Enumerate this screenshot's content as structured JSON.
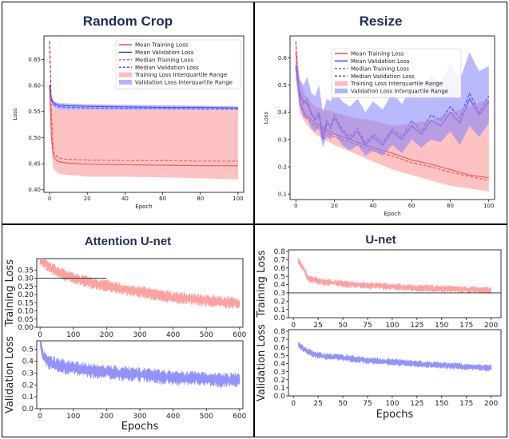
{
  "figure": {
    "titles": [
      "Random Crop",
      "Resize",
      "Attention U-net",
      "U-net"
    ]
  },
  "colors": {
    "title": "#1f2d5a",
    "train": "#e02020",
    "val": "#1a1aff",
    "train_band": "#ff9090",
    "val_band": "#8080ff"
  },
  "chart_data": [
    {
      "type": "line",
      "title": "Random Crop",
      "xlabel": "Epoch",
      "ylabel": "Loss",
      "xlim": [
        -3,
        103
      ],
      "ylim": [
        0.395,
        0.695
      ],
      "xticks": [
        0,
        20,
        40,
        60,
        80,
        100
      ],
      "yticks": [
        0.4,
        0.45,
        0.5,
        0.55,
        0.6,
        0.65
      ],
      "legend_position": "top-right",
      "series": [
        {
          "name": "Mean Training Loss",
          "style": "solid",
          "color": "train",
          "x": [
            0,
            1,
            2,
            4,
            6,
            10,
            20,
            40,
            60,
            80,
            100
          ],
          "y": [
            0.6,
            0.5,
            0.465,
            0.455,
            0.453,
            0.451,
            0.449,
            0.448,
            0.447,
            0.446,
            0.446
          ]
        },
        {
          "name": "Mean Validation Loss",
          "style": "solid",
          "color": "val",
          "x": [
            0,
            1,
            2,
            4,
            6,
            10,
            20,
            40,
            60,
            80,
            100
          ],
          "y": [
            0.6,
            0.575,
            0.567,
            0.563,
            0.562,
            0.561,
            0.56,
            0.559,
            0.558,
            0.558,
            0.557
          ]
        },
        {
          "name": "Median Training Loss",
          "style": "dashed",
          "color": "train",
          "x": [
            0,
            1,
            2,
            4,
            6,
            10,
            20,
            40,
            60,
            80,
            100
          ],
          "y": [
            0.685,
            0.55,
            0.472,
            0.463,
            0.46,
            0.458,
            0.457,
            0.456,
            0.456,
            0.455,
            0.455
          ]
        },
        {
          "name": "Median Validation Loss",
          "style": "dashed",
          "color": "val",
          "x": [
            0,
            1,
            2,
            4,
            6,
            10,
            20,
            40,
            60,
            80,
            100
          ],
          "y": [
            0.6,
            0.572,
            0.564,
            0.56,
            0.559,
            0.558,
            0.557,
            0.556,
            0.556,
            0.555,
            0.555
          ]
        },
        {
          "name": "Training Loss Interquartile Range",
          "style": "band",
          "color": "train_band",
          "x": [
            0,
            1,
            2,
            5,
            20,
            40,
            60,
            80,
            100
          ],
          "lower": [
            0.59,
            0.48,
            0.44,
            0.43,
            0.425,
            0.425,
            0.424,
            0.422,
            0.42
          ],
          "upper": [
            0.6,
            0.565,
            0.557,
            0.553,
            0.553,
            0.553,
            0.553,
            0.553,
            0.553
          ]
        },
        {
          "name": "Validation Loss Interquartile Range",
          "style": "band",
          "color": "val_band",
          "x": [
            0,
            1,
            2,
            5,
            20,
            40,
            60,
            80,
            100
          ],
          "lower": [
            0.6,
            0.566,
            0.558,
            0.553,
            0.553,
            0.553,
            0.553,
            0.553,
            0.553
          ],
          "upper": [
            0.61,
            0.58,
            0.57,
            0.566,
            0.564,
            0.563,
            0.562,
            0.561,
            0.56
          ]
        }
      ]
    },
    {
      "type": "line",
      "title": "Resize",
      "xlabel": "Epoch",
      "ylabel": "Loss",
      "xlim": [
        -3,
        103
      ],
      "ylim": [
        0.08,
        0.68
      ],
      "xticks": [
        0,
        20,
        40,
        60,
        80,
        100
      ],
      "yticks": [
        0.1,
        0.2,
        0.3,
        0.4,
        0.5,
        0.6
      ],
      "legend_position": "top-right",
      "series": [
        {
          "name": "Mean Training Loss",
          "style": "solid",
          "color": "train",
          "x": [
            0,
            2,
            5,
            10,
            15,
            20,
            30,
            40,
            50,
            60,
            70,
            80,
            90,
            100
          ],
          "y": [
            0.62,
            0.44,
            0.39,
            0.36,
            0.34,
            0.32,
            0.295,
            0.27,
            0.25,
            0.225,
            0.21,
            0.19,
            0.17,
            0.16
          ]
        },
        {
          "name": "Mean Validation Loss",
          "style": "solid",
          "color": "val",
          "x": [
            0,
            2,
            4,
            6,
            8,
            10,
            12,
            14,
            16,
            18,
            20,
            24,
            28,
            32,
            36,
            40,
            45,
            50,
            55,
            60,
            65,
            70,
            75,
            80,
            85,
            90,
            95,
            100
          ],
          "y": [
            0.57,
            0.47,
            0.44,
            0.43,
            0.4,
            0.37,
            0.39,
            0.3,
            0.36,
            0.35,
            0.38,
            0.33,
            0.3,
            0.33,
            0.28,
            0.31,
            0.28,
            0.33,
            0.3,
            0.35,
            0.32,
            0.37,
            0.35,
            0.4,
            0.36,
            0.45,
            0.39,
            0.44
          ]
        },
        {
          "name": "Median Training Loss",
          "style": "dashed",
          "color": "train",
          "x": [
            0,
            2,
            5,
            10,
            15,
            20,
            30,
            40,
            50,
            60,
            70,
            80,
            90,
            100
          ],
          "y": [
            0.66,
            0.43,
            0.38,
            0.35,
            0.33,
            0.31,
            0.285,
            0.26,
            0.24,
            0.215,
            0.2,
            0.18,
            0.165,
            0.15
          ]
        },
        {
          "name": "Median Validation Loss",
          "style": "dashed",
          "color": "val",
          "x": [
            0,
            2,
            4,
            6,
            8,
            10,
            12,
            14,
            16,
            18,
            20,
            24,
            28,
            32,
            36,
            40,
            45,
            50,
            55,
            60,
            65,
            70,
            75,
            80,
            85,
            90,
            95,
            100
          ],
          "y": [
            0.56,
            0.46,
            0.43,
            0.45,
            0.39,
            0.38,
            0.4,
            0.32,
            0.37,
            0.34,
            0.39,
            0.34,
            0.31,
            0.34,
            0.29,
            0.32,
            0.29,
            0.34,
            0.31,
            0.37,
            0.33,
            0.39,
            0.37,
            0.42,
            0.38,
            0.47,
            0.4,
            0.46
          ]
        },
        {
          "name": "Training Loss Interquartile Range",
          "style": "band",
          "color": "train_band",
          "x": [
            0,
            2,
            5,
            10,
            20,
            30,
            40,
            50,
            60,
            70,
            80,
            90,
            100
          ],
          "lower": [
            0.55,
            0.4,
            0.36,
            0.32,
            0.28,
            0.25,
            0.22,
            0.19,
            0.17,
            0.15,
            0.13,
            0.12,
            0.11
          ],
          "upper": [
            0.66,
            0.52,
            0.46,
            0.42,
            0.4,
            0.38,
            0.37,
            0.35,
            0.36,
            0.37,
            0.4,
            0.42,
            0.45
          ]
        },
        {
          "name": "Validation Loss Interquartile Range",
          "style": "band",
          "color": "val_band",
          "x": [
            0,
            2,
            4,
            6,
            8,
            10,
            12,
            14,
            16,
            18,
            20,
            24,
            28,
            32,
            36,
            40,
            45,
            50,
            55,
            60,
            65,
            70,
            75,
            80,
            85,
            90,
            95,
            100
          ],
          "lower": [
            0.52,
            0.42,
            0.38,
            0.38,
            0.34,
            0.33,
            0.34,
            0.27,
            0.31,
            0.3,
            0.32,
            0.28,
            0.26,
            0.28,
            0.24,
            0.26,
            0.24,
            0.28,
            0.25,
            0.3,
            0.27,
            0.3,
            0.29,
            0.33,
            0.28,
            0.35,
            0.31,
            0.36
          ],
          "upper": [
            0.6,
            0.52,
            0.5,
            0.53,
            0.47,
            0.46,
            0.5,
            0.4,
            0.45,
            0.44,
            0.48,
            0.44,
            0.42,
            0.45,
            0.4,
            0.44,
            0.41,
            0.47,
            0.43,
            0.5,
            0.46,
            0.54,
            0.51,
            0.58,
            0.52,
            0.62,
            0.55,
            0.57
          ]
        }
      ]
    },
    {
      "type": "line",
      "title": "Attention U-net",
      "ylabel": "Training Loss",
      "xlabel": "",
      "xlim": [
        -10,
        610
      ],
      "ylim": [
        0,
        0.42
      ],
      "xticks": [
        0,
        100,
        200,
        300,
        400,
        500,
        600
      ],
      "yticks": [
        0.0,
        0.05,
        0.1,
        0.15,
        0.2,
        0.25,
        0.3,
        0.35
      ],
      "reference_line": {
        "y": 0.3,
        "x_from": -10,
        "x_to": 200
      },
      "series": [
        {
          "name": "",
          "style": "noisy",
          "color": "train_band",
          "x": [
            0,
            20,
            50,
            100,
            150,
            200,
            250,
            300,
            350,
            400,
            450,
            500,
            550,
            600
          ],
          "y": [
            0.42,
            0.38,
            0.34,
            0.3,
            0.275,
            0.255,
            0.235,
            0.215,
            0.2,
            0.185,
            0.175,
            0.165,
            0.155,
            0.148
          ],
          "noise": 0.03
        }
      ]
    },
    {
      "type": "line",
      "title": "",
      "ylabel": "Validation Loss",
      "xlabel": "Epochs",
      "xlim": [
        -10,
        610
      ],
      "ylim": [
        0,
        0.57
      ],
      "xticks": [
        0,
        100,
        200,
        300,
        400,
        500,
        600
      ],
      "yticks": [
        0.0,
        0.1,
        0.2,
        0.3,
        0.4,
        0.5
      ],
      "series": [
        {
          "name": "",
          "style": "noisy",
          "color": "val_band",
          "x": [
            0,
            10,
            30,
            60,
            100,
            150,
            200,
            250,
            300,
            350,
            400,
            450,
            500,
            550,
            600
          ],
          "y": [
            0.55,
            0.44,
            0.39,
            0.36,
            0.34,
            0.32,
            0.31,
            0.295,
            0.285,
            0.27,
            0.26,
            0.255,
            0.25,
            0.24,
            0.24
          ],
          "noise": 0.05
        }
      ]
    },
    {
      "type": "line",
      "title": "U-net",
      "ylabel": "Training Loss",
      "xlabel": "",
      "xlim": [
        -5,
        210
      ],
      "ylim": [
        0,
        0.82
      ],
      "xticks": [
        0,
        25,
        50,
        75,
        100,
        125,
        150,
        175,
        200
      ],
      "yticks": [
        0.0,
        0.1,
        0.2,
        0.3,
        0.4,
        0.5,
        0.6,
        0.7,
        0.8
      ],
      "reference_line": {
        "y": 0.3,
        "x_from": -5,
        "x_to": 210
      },
      "series": [
        {
          "name": "",
          "style": "noisy",
          "color": "train_band",
          "x": [
            5,
            10,
            15,
            20,
            30,
            50,
            75,
            100,
            125,
            150,
            175,
            200
          ],
          "y": [
            0.68,
            0.6,
            0.47,
            0.46,
            0.43,
            0.41,
            0.39,
            0.375,
            0.36,
            0.35,
            0.34,
            0.33
          ],
          "noise": 0.035
        }
      ]
    },
    {
      "type": "line",
      "title": "",
      "ylabel": "Validation Loss",
      "xlabel": "Epochs",
      "xlim": [
        -5,
        210
      ],
      "ylim": [
        0,
        0.82
      ],
      "xticks": [
        0,
        25,
        50,
        75,
        100,
        125,
        150,
        175,
        200
      ],
      "yticks": [
        0.0,
        0.1,
        0.2,
        0.3,
        0.4,
        0.5,
        0.6,
        0.7,
        0.8
      ],
      "series": [
        {
          "name": "",
          "style": "noisy",
          "color": "val_band",
          "x": [
            5,
            10,
            20,
            30,
            50,
            75,
            100,
            125,
            150,
            175,
            200
          ],
          "y": [
            0.64,
            0.58,
            0.52,
            0.49,
            0.47,
            0.44,
            0.42,
            0.4,
            0.38,
            0.36,
            0.345
          ],
          "noise": 0.035
        }
      ]
    }
  ]
}
